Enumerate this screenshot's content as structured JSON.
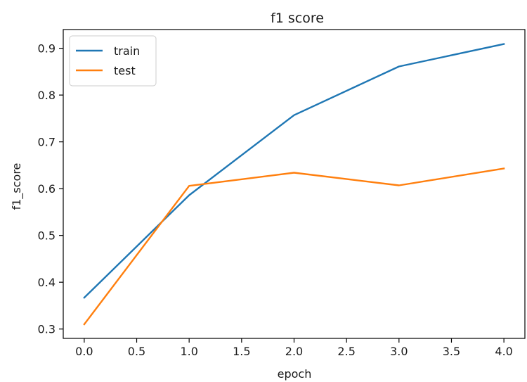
{
  "chart_data": {
    "type": "line",
    "title": "f1 score",
    "xlabel": "epoch",
    "ylabel": "f1_score",
    "xlim": [
      -0.2,
      4.2
    ],
    "ylim": [
      0.28,
      0.94
    ],
    "x_ticks": [
      "0.0",
      "0.5",
      "1.0",
      "1.5",
      "2.0",
      "2.5",
      "3.0",
      "3.5",
      "4.0"
    ],
    "y_ticks": [
      "0.3",
      "0.4",
      "0.5",
      "0.6",
      "0.7",
      "0.8",
      "0.9"
    ],
    "x": [
      0,
      1,
      2,
      3,
      4
    ],
    "series": [
      {
        "name": "train",
        "color": "#1f77b4",
        "values": [
          0.367,
          0.586,
          0.757,
          0.861,
          0.909
        ]
      },
      {
        "name": "test",
        "color": "#ff7f0e",
        "values": [
          0.31,
          0.606,
          0.634,
          0.607,
          0.643
        ]
      }
    ],
    "legend": "top-left",
    "grid": false
  }
}
